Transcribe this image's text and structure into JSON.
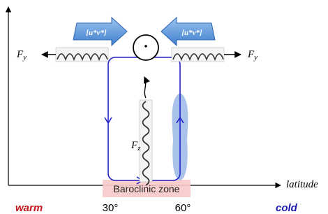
{
  "flux_arrows": [
    {
      "label": "[u*v*]"
    },
    {
      "label": "[u*v*]"
    }
  ],
  "wave_labels": [
    {
      "base": "F",
      "sub": "y"
    },
    {
      "base": "F",
      "sub": "y"
    },
    {
      "base": "F",
      "sub": "z"
    }
  ],
  "zone": "Baroclinic zone",
  "axis": {
    "x_label": "latitude"
  },
  "bottom_labels": {
    "warm": "warm",
    "lat1": "30°",
    "lat2": "60°",
    "cold": "cold"
  }
}
